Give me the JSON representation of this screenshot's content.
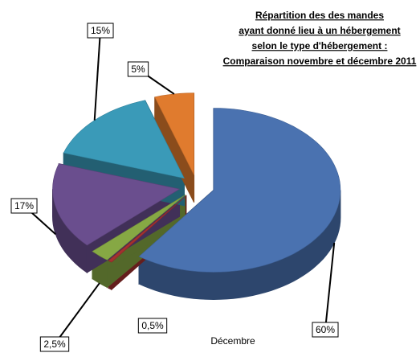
{
  "chart_data": {
    "type": "pie3d",
    "title": [
      "Répartition des des mandes",
      "ayant donné lieu à un hébergement",
      "selon le type d'hébergement :",
      "Comparaison novembre et décembre 2011"
    ],
    "subtitle": "Décembre",
    "values": [
      60,
      0.5,
      2.5,
      17,
      15,
      5
    ],
    "value_labels": [
      "60%",
      "0,5%",
      "2,5%",
      "17%",
      "15%",
      "5%"
    ],
    "colors": [
      "#4a72b0",
      "#a3312f",
      "#86a844",
      "#6a4e8e",
      "#3a9ab8",
      "#e07b2e"
    ]
  }
}
